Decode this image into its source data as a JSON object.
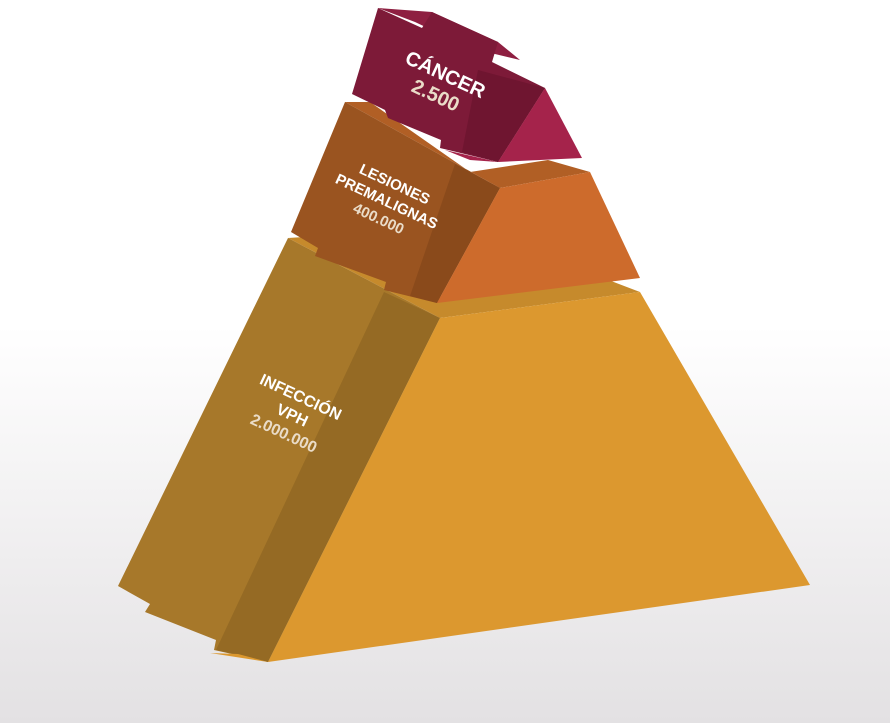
{
  "diagram": {
    "levels": [
      {
        "id": "cancer",
        "name_lines": [
          "CÁNCER"
        ],
        "value": "2.500",
        "colors": {
          "front": "#7d1a38",
          "front_dark": "#6f1530",
          "side": "#a5234b",
          "top": "#8e1f41"
        }
      },
      {
        "id": "lesiones",
        "name_lines": [
          "LESIONES",
          "PREMALIGNAS"
        ],
        "value": "400.000",
        "colors": {
          "front": "#9a5420",
          "front_dark": "#8a4a1b",
          "side": "#cd6b2c",
          "top": "#b15f25"
        }
      },
      {
        "id": "infeccion",
        "name_lines": [
          "INFECCIÓN",
          "VPH"
        ],
        "value": "2.000.000",
        "colors": {
          "front": "#a7782a",
          "front_dark": "#956a24",
          "side": "#dc982f",
          "top": "#c68a2c"
        }
      }
    ],
    "background_colors": {
      "top": "#ffffff",
      "bottom": "#e3e1e3"
    }
  }
}
